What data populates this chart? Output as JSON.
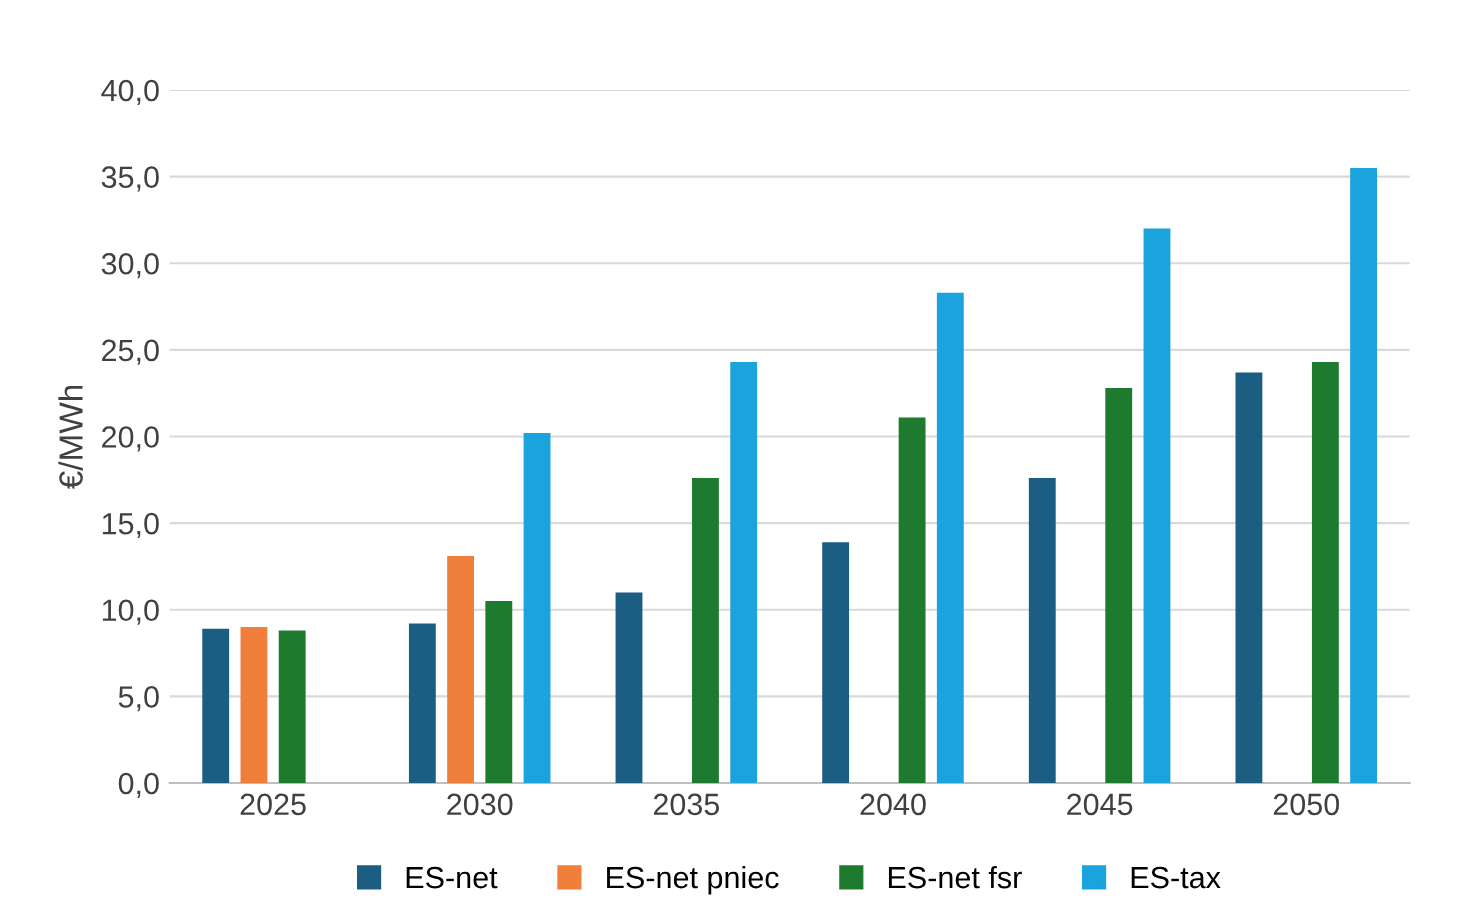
{
  "chart_data": {
    "type": "bar",
    "ylabel": "€/MWh",
    "categories": [
      "2025",
      "2030",
      "2035",
      "2040",
      "2045",
      "2050"
    ],
    "series": [
      {
        "name": "ES-net",
        "color": "#1b5e82",
        "values": [
          8.9,
          9.2,
          11.0,
          13.9,
          17.6,
          23.7
        ]
      },
      {
        "name": "ES-net pniec",
        "color": "#f07f3c",
        "values": [
          9.0,
          13.1,
          null,
          null,
          null,
          null
        ]
      },
      {
        "name": "ES-net fsr",
        "color": "#1e7a2e",
        "values": [
          8.8,
          10.5,
          17.6,
          21.1,
          22.8,
          24.3
        ]
      },
      {
        "name": "ES-tax",
        "color": "#1aa3dd",
        "values": [
          null,
          20.2,
          24.3,
          28.3,
          32.0,
          35.5
        ]
      }
    ],
    "ylim": [
      0,
      40
    ],
    "yticks": [
      {
        "value": 0,
        "label": "0,0"
      },
      {
        "value": 5,
        "label": "5,0"
      },
      {
        "value": 10,
        "label": "10,0"
      },
      {
        "value": 15,
        "label": "15,0"
      },
      {
        "value": 20,
        "label": "20,0"
      },
      {
        "value": 25,
        "label": "25,0"
      },
      {
        "value": 30,
        "label": "30,0"
      },
      {
        "value": 35,
        "label": "35,0"
      },
      {
        "value": 40,
        "label": "40,0"
      }
    ],
    "grid": "y",
    "legend": "bottom"
  }
}
